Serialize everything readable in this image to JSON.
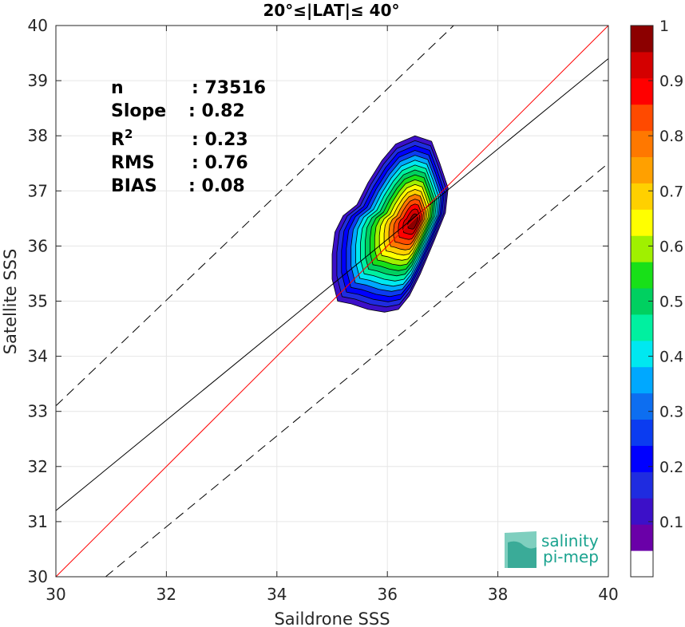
{
  "chart_data": {
    "type": "scatter",
    "title": "20°≤|LAT|≤ 40°",
    "xlabel": "Saildrone SSS",
    "ylabel": "Satellite SSS",
    "xlim": [
      30,
      40
    ],
    "ylim": [
      30,
      40
    ],
    "xticks": [
      "30",
      "32",
      "34",
      "36",
      "38",
      "40"
    ],
    "yticks": [
      "30",
      "31",
      "32",
      "33",
      "34",
      "35",
      "36",
      "37",
      "38",
      "39",
      "40"
    ],
    "grid": true,
    "stats": [
      {
        "label": "n",
        "value": ": 73516"
      },
      {
        "label": "Slope",
        "value": ": 0.82"
      },
      {
        "label": "R",
        "sup": "2",
        "value": ": 0.23"
      },
      {
        "label": "RMS",
        "value": ": 0.76"
      },
      {
        "label": "BIAS",
        "value": ": 0.08"
      }
    ],
    "lines": {
      "identity": {
        "x": [
          30,
          40
        ],
        "y": [
          30,
          40
        ],
        "color": "#ff0000"
      },
      "fit": {
        "x": [
          30,
          40
        ],
        "y": [
          31.2,
          39.4
        ],
        "color": "#000000"
      },
      "upper_bound": {
        "x": [
          30,
          37.2
        ],
        "y": [
          33.1,
          40
        ],
        "style": "dashed"
      },
      "lower_bound": {
        "x": [
          30.9,
          40
        ],
        "y": [
          30,
          37.5
        ],
        "style": "dashed"
      }
    },
    "density_contours": {
      "center": [
        36.5,
        36.45
      ],
      "levels": [
        0.05,
        0.1,
        0.15,
        0.2,
        0.25,
        0.3,
        0.35,
        0.4,
        0.45,
        0.5,
        0.55,
        0.6,
        0.65,
        0.7,
        0.75,
        0.8,
        0.85
      ],
      "outer_region": [
        [
          35.1,
          35.0
        ],
        [
          35.35,
          34.95
        ],
        [
          35.65,
          34.85
        ],
        [
          35.95,
          34.8
        ],
        [
          36.2,
          34.85
        ],
        [
          36.4,
          35.1
        ],
        [
          36.6,
          35.5
        ],
        [
          36.85,
          36.1
        ],
        [
          37.05,
          36.6
        ],
        [
          37.1,
          37.05
        ],
        [
          36.95,
          37.5
        ],
        [
          36.8,
          37.9
        ],
        [
          36.5,
          38.0
        ],
        [
          36.15,
          37.85
        ],
        [
          35.9,
          37.55
        ],
        [
          35.65,
          37.15
        ],
        [
          35.45,
          36.75
        ],
        [
          35.2,
          36.55
        ],
        [
          35.05,
          36.25
        ],
        [
          35.0,
          35.85
        ],
        [
          35.0,
          35.4
        ]
      ]
    },
    "colorbar": {
      "ticks": [
        "0.1",
        "0.2",
        "0.3",
        "0.4",
        "0.5",
        "0.6",
        "0.7",
        "0.8",
        "0.9",
        "1"
      ],
      "colors": [
        "#ffffff",
        "#6a00a8",
        "#3c10c8",
        "#1f2ce0",
        "#0000ff",
        "#0b3cf0",
        "#0d6ef0",
        "#00a8ff",
        "#00e8f0",
        "#00f0a0",
        "#00d060",
        "#18e018",
        "#a0f000",
        "#ffff00",
        "#ffd000",
        "#ffa000",
        "#ff7800",
        "#ff4a00",
        "#ff0000",
        "#d40000",
        "#8c0000"
      ]
    }
  },
  "logo": {
    "line1": "salinity",
    "line2": "pi-mep"
  }
}
